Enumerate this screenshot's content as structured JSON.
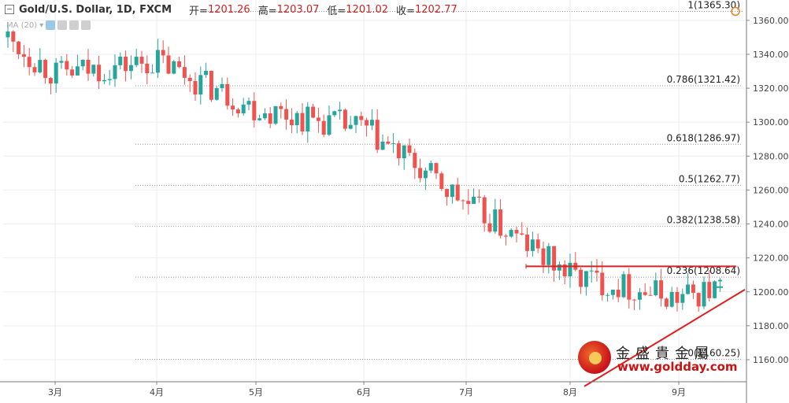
{
  "header": {
    "symbol": "Gold/U.S. Dollar, 1D, FXCM",
    "open_label": "开=",
    "open_value": "1201.26",
    "high_label": "高=",
    "high_value": "1203.07",
    "low_label": "低=",
    "low_value": "1201.02",
    "close_label": "收=",
    "close_value": "1202.77"
  },
  "indicator": {
    "label": "MA (20)"
  },
  "watermark": {
    "name": "金盛貴金屬",
    "url": "www.goldday.com"
  },
  "colors": {
    "up": "#26a69a",
    "down": "#ef5350",
    "fib_line": "#999999",
    "trend": "#e02020",
    "grid": "#eeeeee"
  },
  "chart_data": {
    "type": "candlestick",
    "y_axis": {
      "min": 1147,
      "max": 1372,
      "ticks": [
        1160,
        1180,
        1200,
        1220,
        1240,
        1260,
        1280,
        1300,
        1320,
        1340,
        1360
      ],
      "position": "right"
    },
    "x_axis": {
      "tick_labels": [
        "3月",
        "4月",
        "5月",
        "6月",
        "7月",
        "8月",
        "9月"
      ]
    },
    "price_anchors": [
      {
        "label": "3月",
        "price": 1328
      },
      {
        "label": "4月",
        "price": 1336
      },
      {
        "label": "5月",
        "price": 1308
      },
      {
        "label": "6月",
        "price": 1296
      },
      {
        "label": "7月",
        "price": 1252
      },
      {
        "label": "8月",
        "price": 1210
      },
      {
        "label": "9月",
        "price": 1196
      }
    ],
    "fibonacci": [
      {
        "label": "1(1365.30)",
        "value": 1365.3
      },
      {
        "label": "0.786(1321.42)",
        "value": 1321.42
      },
      {
        "label": "0.618(1286.97)",
        "value": 1286.97
      },
      {
        "label": "0.5(1262.77)",
        "value": 1262.77
      },
      {
        "label": "0.382(1238.58)",
        "value": 1238.58
      },
      {
        "label": "0.236(1208.64)",
        "value": 1208.64
      },
      {
        "label": "0(1160.25)",
        "value": 1160.25
      }
    ],
    "resistance": {
      "value": 1215
    },
    "support_trendline": {
      "start": {
        "value": 1148
      },
      "end": {
        "value": 1199
      }
    },
    "last_price": 1202.77
  }
}
